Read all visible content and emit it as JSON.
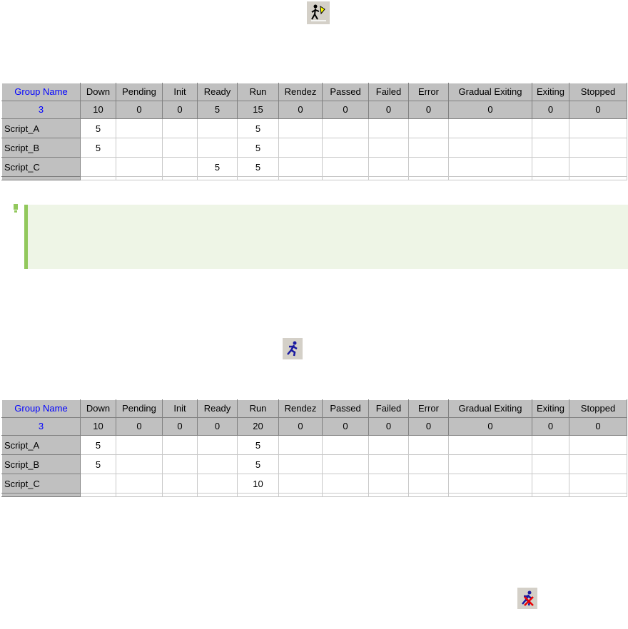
{
  "icons": {
    "top": "gradual-exit-runner-flag-icon",
    "middle": "run-runner-icon",
    "bottom": "stop-runner-x-icon",
    "note": "exclamation-icon"
  },
  "colors": {
    "header_bg": "#c0c0c0",
    "group_name": "#0000ff",
    "note_bg": "#eef5e6",
    "note_bar": "#92c85c"
  },
  "columns": [
    "Group Name",
    "Down",
    "Pending",
    "Init",
    "Ready",
    "Run",
    "Rendez",
    "Passed",
    "Failed",
    "Error",
    "Gradual Exiting",
    "Exiting",
    "Stopped"
  ],
  "tables": [
    {
      "totals": [
        "3",
        "10",
        "0",
        "0",
        "5",
        "15",
        "0",
        "0",
        "0",
        "0",
        "0",
        "0",
        "0"
      ],
      "rows": [
        [
          "Script_A",
          "5",
          "",
          "",
          "",
          "5",
          "",
          "",
          "",
          "",
          "",
          "",
          ""
        ],
        [
          "Script_B",
          "5",
          "",
          "",
          "",
          "5",
          "",
          "",
          "",
          "",
          "",
          "",
          ""
        ],
        [
          "Script_C",
          "",
          "",
          "",
          "5",
          "5",
          "",
          "",
          "",
          "",
          "",
          "",
          ""
        ]
      ]
    },
    {
      "totals": [
        "3",
        "10",
        "0",
        "0",
        "0",
        "20",
        "0",
        "0",
        "0",
        "0",
        "0",
        "0",
        "0"
      ],
      "rows": [
        [
          "Script_A",
          "5",
          "",
          "",
          "",
          "5",
          "",
          "",
          "",
          "",
          "",
          "",
          ""
        ],
        [
          "Script_B",
          "5",
          "",
          "",
          "",
          "5",
          "",
          "",
          "",
          "",
          "",
          "",
          ""
        ],
        [
          "Script_C",
          "",
          "",
          "",
          "",
          "10",
          "",
          "",
          "",
          "",
          "",
          "",
          ""
        ]
      ]
    }
  ]
}
